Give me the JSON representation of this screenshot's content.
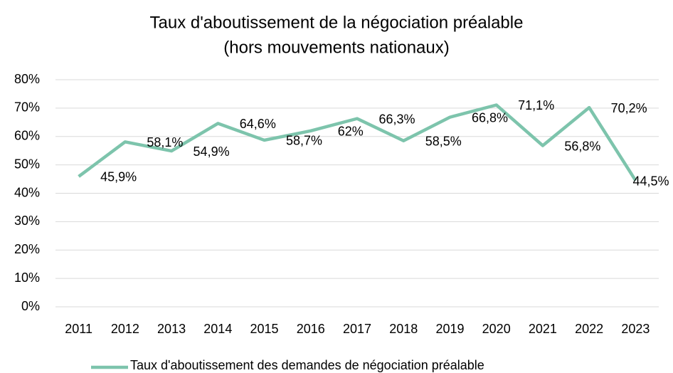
{
  "chart_data": {
    "type": "line",
    "title": [
      "Taux d'aboutissement de la négociation préalable",
      "(hors mouvements nationaux)"
    ],
    "categories": [
      "2011",
      "2012",
      "2013",
      "2014",
      "2015",
      "2016",
      "2017",
      "2018",
      "2019",
      "2020",
      "2021",
      "2022",
      "2023"
    ],
    "series": [
      {
        "name": "Taux d'aboutissement des demandes de négociation préalable",
        "color": "#7dc4ac",
        "values": [
          45.9,
          58.1,
          54.9,
          64.6,
          58.7,
          62,
          66.3,
          58.5,
          66.8,
          71.1,
          56.8,
          70.2,
          44.5
        ],
        "value_labels": [
          "45,9%",
          "58,1%",
          "54,9%",
          "64,6%",
          "58,7%",
          "62%",
          "66,3%",
          "58,5%",
          "66,8%",
          "71,1%",
          "56,8%",
          "70,2%",
          "44,5%"
        ]
      }
    ],
    "ylim": [
      0,
      80
    ],
    "yticks": [
      {
        "value": 0,
        "label": "0%"
      },
      {
        "value": 10,
        "label": "10%"
      },
      {
        "value": 20,
        "label": "20%"
      },
      {
        "value": 30,
        "label": "30%"
      },
      {
        "value": 40,
        "label": "40%"
      },
      {
        "value": 50,
        "label": "50%"
      },
      {
        "value": 60,
        "label": "60%"
      },
      {
        "value": 70,
        "label": "70%"
      },
      {
        "value": 80,
        "label": "80%"
      }
    ],
    "grid": true,
    "legend": "bottom"
  }
}
